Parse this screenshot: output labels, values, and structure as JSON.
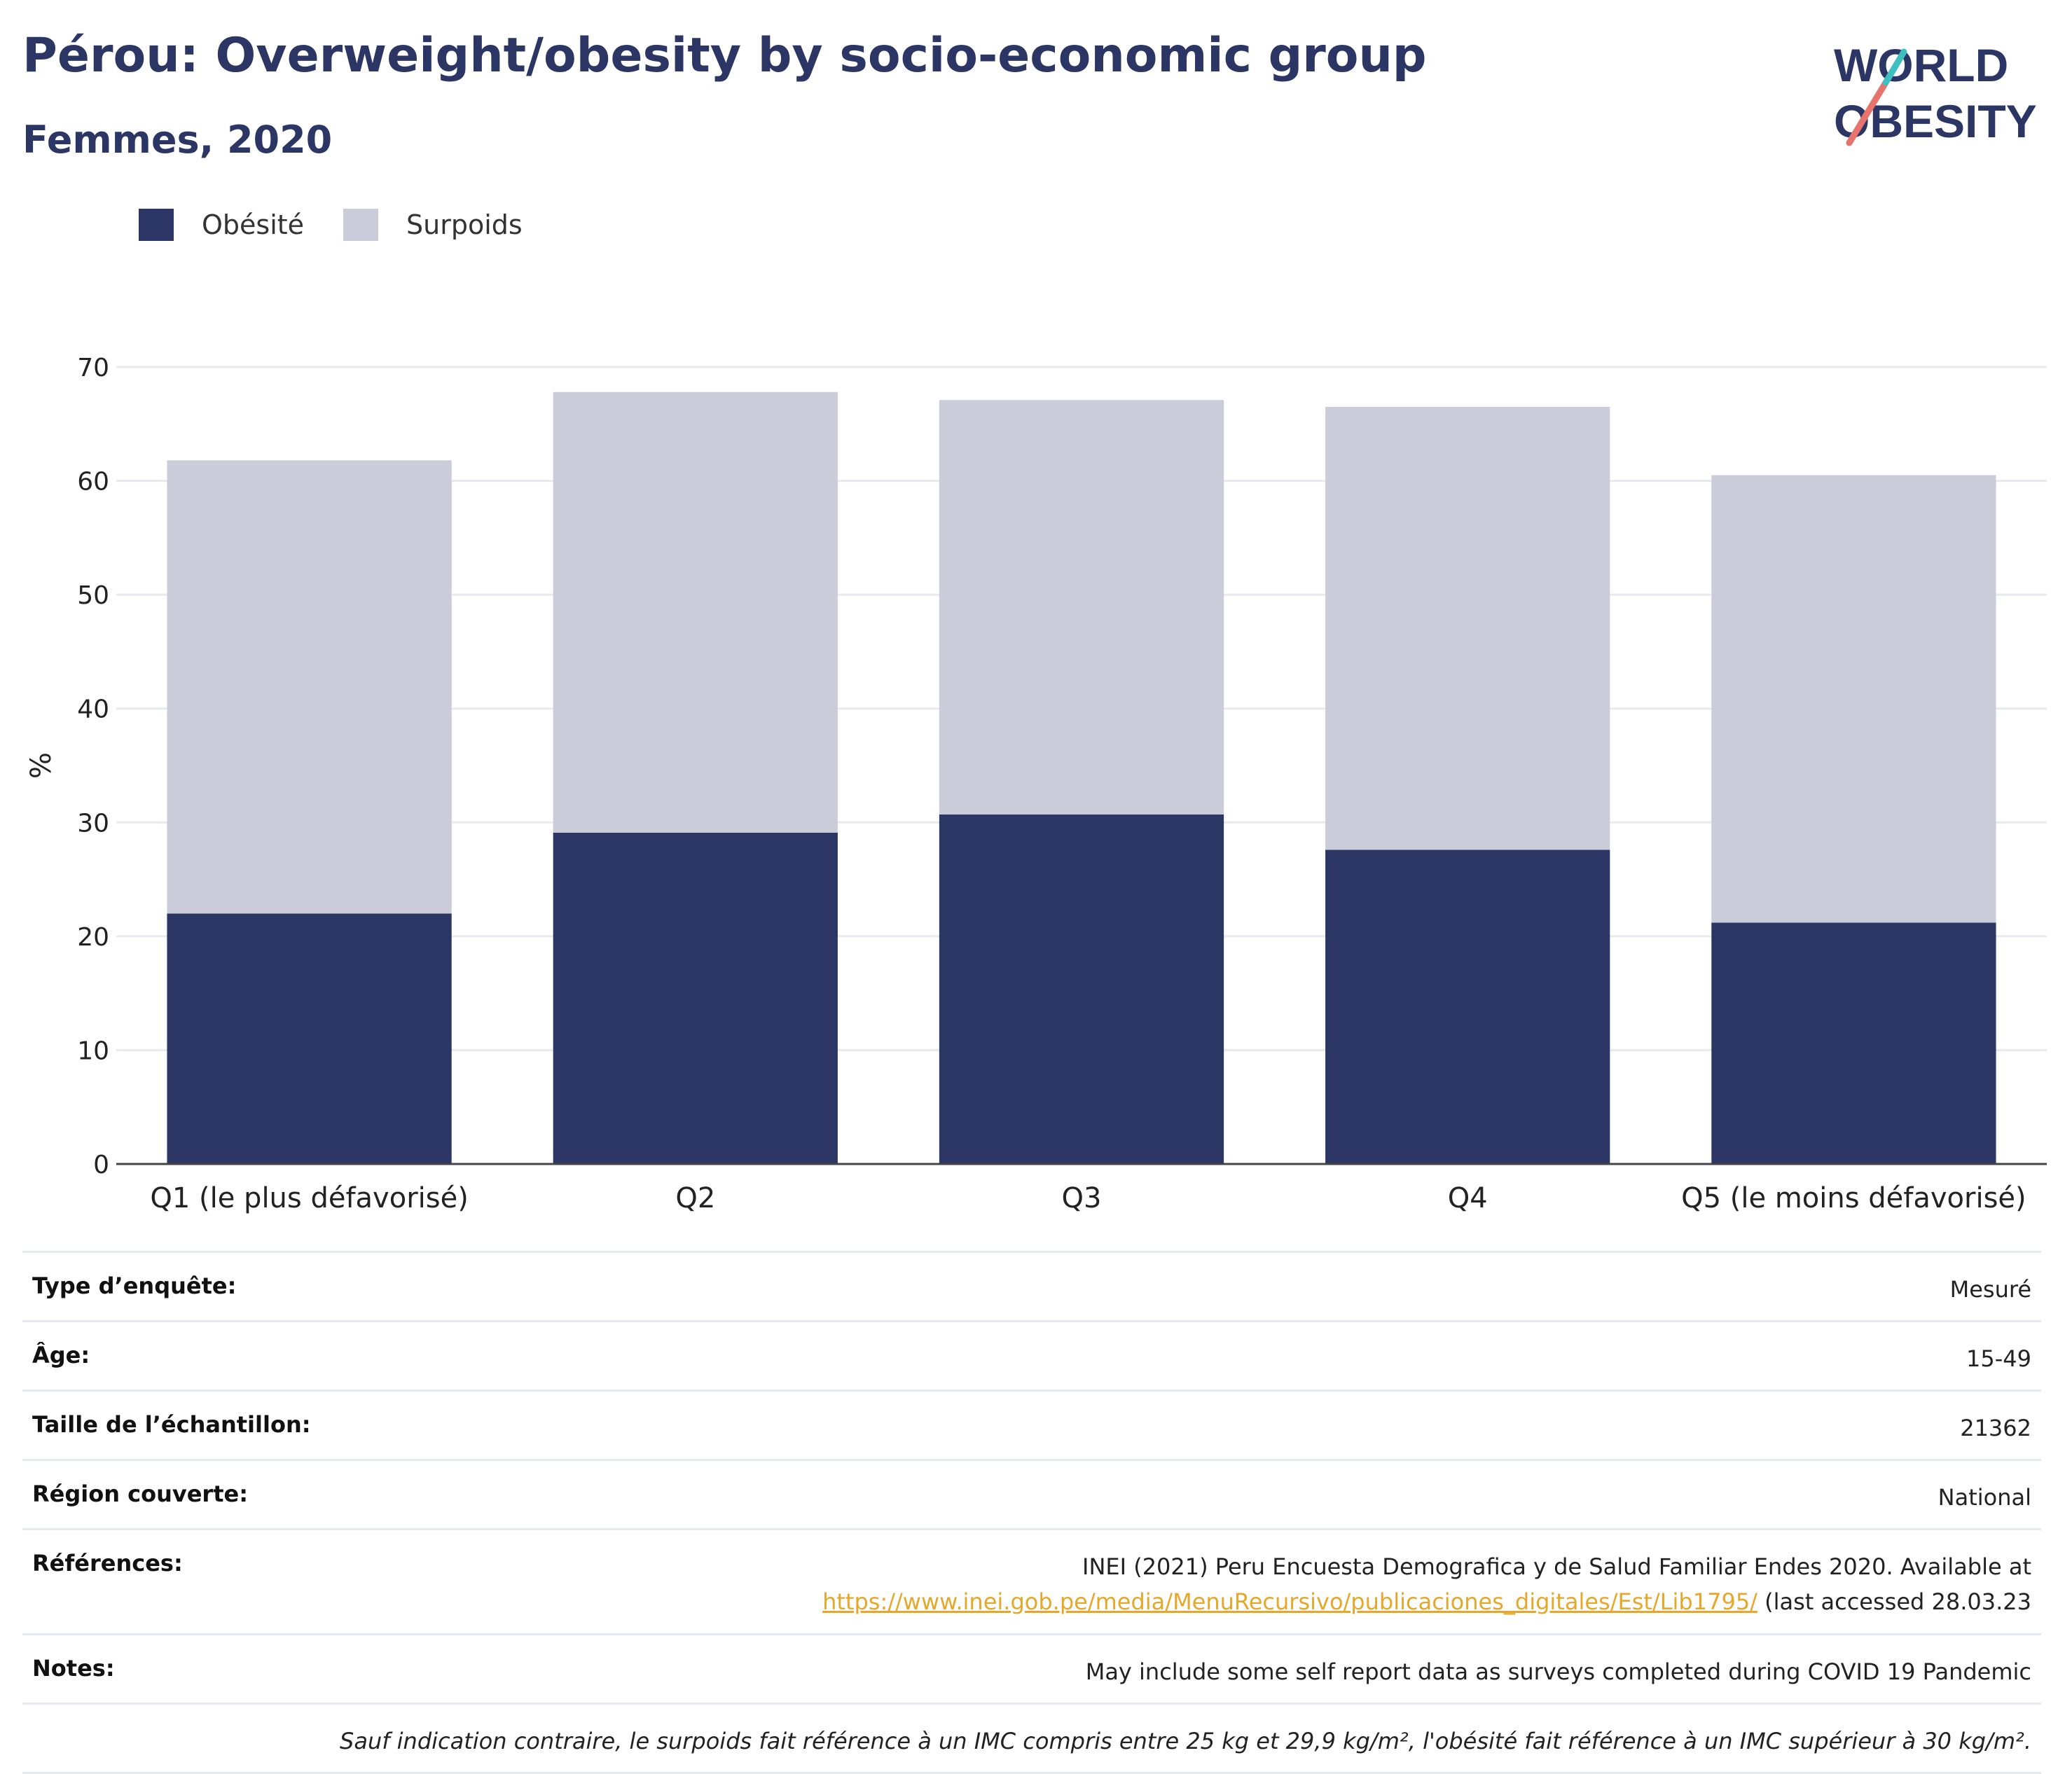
{
  "title": "Pérou: Overweight/obesity by socio-economic group",
  "subtitle": "Femmes, 2020",
  "logo": {
    "line1": "WORLD",
    "line2": "OBESITY",
    "colors": [
      "#2b3664",
      "#e8736c",
      "#3fbfbf"
    ]
  },
  "legend": [
    {
      "label": "Obésité",
      "color": "#2b3664"
    },
    {
      "label": "Surpoids",
      "color": "#cacdd9"
    }
  ],
  "chart_data": {
    "type": "bar",
    "stacked": true,
    "categories": [
      "Q1 (le plus défavorisé)",
      "Q2",
      "Q3",
      "Q4",
      "Q5 (le moins défavorisé)"
    ],
    "series": [
      {
        "name": "Obésité",
        "values": [
          22.0,
          29.1,
          30.7,
          27.6,
          21.2
        ],
        "color": "#2b3664"
      },
      {
        "name": "Surpoids",
        "values": [
          39.8,
          38.7,
          36.4,
          38.9,
          39.3
        ],
        "color": "#cacdd9"
      }
    ],
    "ylabel": "%",
    "ylim": [
      0,
      70
    ],
    "yticks": [
      0,
      10,
      20,
      30,
      40,
      50,
      60,
      70
    ],
    "grid": true
  },
  "meta": {
    "survey_type": {
      "label": "Type d’enquête:",
      "value": "Mesuré"
    },
    "age": {
      "label": "Âge:",
      "value": "15-49"
    },
    "sample_size": {
      "label": "Taille de l’échantillon:",
      "value": "21362"
    },
    "region": {
      "label": "Région couverte:",
      "value": "National"
    },
    "references": {
      "label": "Références:",
      "line1": "INEI (2021) Peru Encuesta Demografica y de Salud Familiar Endes 2020. Available at",
      "link": "https://www.inei.gob.pe/media/MenuRecursivo/publicaciones_digitales/Est/Lib1795/",
      "suffix": " (last accessed 28.03.23"
    },
    "notes": {
      "label": "Notes:",
      "value": "May include some self report data as surveys completed during COVID 19 Pandemic"
    },
    "footnote": "Sauf indication contraire, le surpoids fait référence à un IMC compris entre 25 kg et 29,9 kg/m², l'obésité fait référence à un IMC supérieur à 30 kg/m²."
  }
}
